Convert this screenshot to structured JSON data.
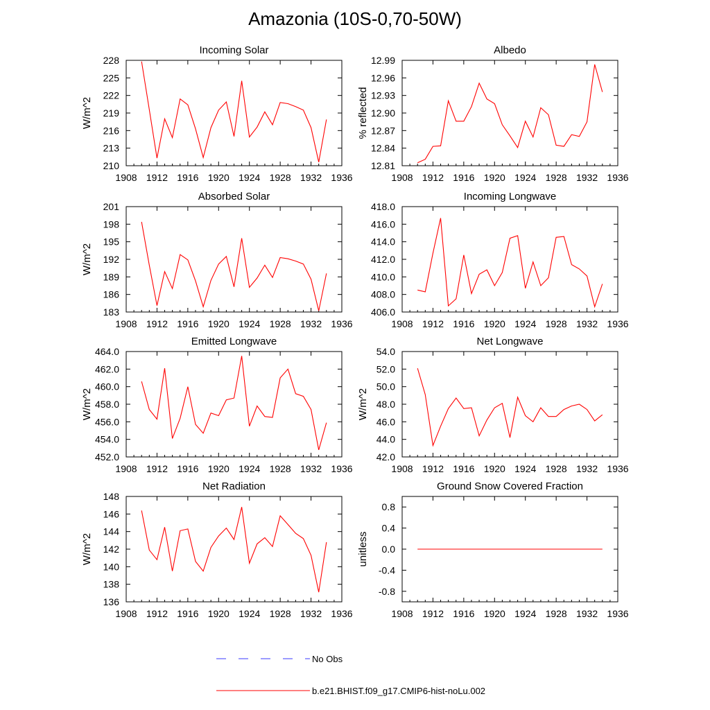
{
  "page_title": "Amazonia (10S-0,70-50W)",
  "colors": {
    "model": "#ff0000",
    "obs": "#3a3aff",
    "axis": "#000000"
  },
  "legend": [
    {
      "label": "No Obs",
      "style": "dashed",
      "color": "#3a3aff"
    },
    {
      "label": "b.e21.BHIST.f09_g17.CMIP6-hist-noLu.002",
      "style": "solid",
      "color": "#ff0000"
    }
  ],
  "chart_data": [
    {
      "type": "line",
      "title": "Incoming Solar",
      "ylabel": "W/m^2",
      "xlim": [
        1908,
        1936
      ],
      "x_ticks": [
        "1908",
        "1912",
        "1916",
        "1920",
        "1924",
        "1928",
        "1932",
        "1936"
      ],
      "ylim": [
        210,
        228
      ],
      "y_ticks": [
        "210",
        "213",
        "216",
        "219",
        "222",
        "225",
        "228"
      ],
      "series": [
        {
          "x": [
            1910,
            1911,
            1912,
            1913,
            1914,
            1915,
            1916,
            1917,
            1918,
            1919,
            1920,
            1921,
            1922,
            1923,
            1924,
            1925,
            1926,
            1927,
            1928,
            1929,
            1930,
            1931,
            1932,
            1933,
            1934
          ],
          "values": [
            227.8,
            219.6,
            211.3,
            218.0,
            214.8,
            221.4,
            220.4,
            216.3,
            211.4,
            216.5,
            219.5,
            220.9,
            215.0,
            224.5,
            214.9,
            216.6,
            219.2,
            217.0,
            220.8,
            220.6,
            220.1,
            219.5,
            216.5,
            210.6,
            217.9
          ]
        }
      ]
    },
    {
      "type": "line",
      "title": "Albedo",
      "ylabel": "% reflected",
      "xlim": [
        1908,
        1936
      ],
      "x_ticks": [
        "1908",
        "1912",
        "1916",
        "1920",
        "1924",
        "1928",
        "1932",
        "1936"
      ],
      "ylim": [
        12.81,
        12.99
      ],
      "y_ticks": [
        "12.81",
        "12.84",
        "12.87",
        "12.90",
        "12.93",
        "12.96",
        "12.99"
      ],
      "series": [
        {
          "x": [
            1910,
            1911,
            1912,
            1913,
            1914,
            1915,
            1916,
            1917,
            1918,
            1919,
            1920,
            1921,
            1922,
            1923,
            1924,
            1925,
            1926,
            1927,
            1928,
            1929,
            1930,
            1931,
            1932,
            1933,
            1934
          ],
          "values": [
            12.815,
            12.821,
            12.843,
            12.844,
            12.921,
            12.886,
            12.886,
            12.911,
            12.951,
            12.924,
            12.916,
            12.88,
            12.861,
            12.841,
            12.886,
            12.859,
            12.909,
            12.897,
            12.845,
            12.843,
            12.863,
            12.86,
            12.885,
            12.983,
            12.936
          ]
        }
      ]
    },
    {
      "type": "line",
      "title": "Absorbed Solar",
      "ylabel": "W/m^2",
      "xlim": [
        1908,
        1936
      ],
      "x_ticks": [
        "1908",
        "1912",
        "1916",
        "1920",
        "1924",
        "1928",
        "1932",
        "1936"
      ],
      "ylim": [
        183,
        201
      ],
      "y_ticks": [
        "183",
        "186",
        "189",
        "192",
        "195",
        "198",
        "201"
      ],
      "series": [
        {
          "x": [
            1910,
            1911,
            1912,
            1913,
            1914,
            1915,
            1916,
            1917,
            1918,
            1919,
            1920,
            1921,
            1922,
            1923,
            1924,
            1925,
            1926,
            1927,
            1928,
            1929,
            1930,
            1931,
            1932,
            1933,
            1934
          ],
          "values": [
            198.4,
            191.0,
            184.1,
            189.9,
            187.0,
            192.8,
            191.9,
            188.3,
            183.9,
            188.4,
            191.2,
            192.5,
            187.3,
            195.6,
            187.2,
            188.8,
            191.0,
            188.9,
            192.3,
            192.1,
            191.7,
            191.2,
            188.6,
            183.2,
            189.6
          ]
        }
      ]
    },
    {
      "type": "line",
      "title": "Incoming Longwave",
      "ylabel": "",
      "xlim": [
        1908,
        1936
      ],
      "x_ticks": [
        "1908",
        "1912",
        "1916",
        "1920",
        "1924",
        "1928",
        "1932",
        "1936"
      ],
      "ylim": [
        406,
        418
      ],
      "y_ticks": [
        "406.0",
        "408.0",
        "410.0",
        "412.0",
        "414.0",
        "416.0",
        "418.0"
      ],
      "series": [
        {
          "x": [
            1910,
            1911,
            1912,
            1913,
            1914,
            1915,
            1916,
            1917,
            1918,
            1919,
            1920,
            1921,
            1922,
            1923,
            1924,
            1925,
            1926,
            1927,
            1928,
            1929,
            1930,
            1931,
            1932,
            1933,
            1934
          ],
          "values": [
            408.5,
            408.3,
            412.7,
            416.7,
            406.7,
            407.5,
            412.5,
            408.1,
            410.3,
            410.8,
            409.0,
            410.5,
            414.4,
            414.7,
            408.7,
            411.7,
            409.0,
            409.9,
            414.5,
            414.6,
            411.4,
            410.9,
            410.1,
            406.6,
            409.2
          ]
        }
      ]
    },
    {
      "type": "line",
      "title": "Emitted Longwave",
      "ylabel": "W/m^2",
      "xlim": [
        1908,
        1936
      ],
      "x_ticks": [
        "1908",
        "1912",
        "1916",
        "1920",
        "1924",
        "1928",
        "1932",
        "1936"
      ],
      "ylim": [
        452,
        464
      ],
      "y_ticks": [
        "452.0",
        "454.0",
        "456.0",
        "458.0",
        "460.0",
        "462.0",
        "464.0"
      ],
      "series": [
        {
          "x": [
            1910,
            1911,
            1912,
            1913,
            1914,
            1915,
            1916,
            1917,
            1918,
            1919,
            1920,
            1921,
            1922,
            1923,
            1924,
            1925,
            1926,
            1927,
            1928,
            1929,
            1930,
            1931,
            1932,
            1933,
            1934
          ],
          "values": [
            460.6,
            457.4,
            456.3,
            462.1,
            454.1,
            456.4,
            460.0,
            455.7,
            454.7,
            457.0,
            456.7,
            458.5,
            458.7,
            463.5,
            455.5,
            457.8,
            456.6,
            456.5,
            461.0,
            462.0,
            459.2,
            458.9,
            457.4,
            452.8,
            455.9
          ]
        }
      ]
    },
    {
      "type": "line",
      "title": "Net Longwave",
      "ylabel": "W/m^2",
      "xlim": [
        1908,
        1936
      ],
      "x_ticks": [
        "1908",
        "1912",
        "1916",
        "1920",
        "1924",
        "1928",
        "1932",
        "1936"
      ],
      "ylim": [
        42,
        54
      ],
      "y_ticks": [
        "42.0",
        "44.0",
        "46.0",
        "48.0",
        "50.0",
        "52.0",
        "54.0"
      ],
      "series": [
        {
          "x": [
            1910,
            1911,
            1912,
            1913,
            1914,
            1915,
            1916,
            1917,
            1918,
            1919,
            1920,
            1921,
            1922,
            1923,
            1924,
            1925,
            1926,
            1927,
            1928,
            1929,
            1930,
            1931,
            1932,
            1933,
            1934
          ],
          "values": [
            52.1,
            49.1,
            43.3,
            45.5,
            47.5,
            48.7,
            47.5,
            47.6,
            44.4,
            46.2,
            47.6,
            48.1,
            44.2,
            48.8,
            46.7,
            46.0,
            47.6,
            46.6,
            46.6,
            47.4,
            47.8,
            48.0,
            47.4,
            46.1,
            46.8
          ]
        }
      ]
    },
    {
      "type": "line",
      "title": "Net Radiation",
      "ylabel": "W/m^2",
      "xlim": [
        1908,
        1936
      ],
      "x_ticks": [
        "1908",
        "1912",
        "1916",
        "1920",
        "1924",
        "1928",
        "1932",
        "1936"
      ],
      "ylim": [
        136,
        148
      ],
      "y_ticks": [
        "136",
        "138",
        "140",
        "142",
        "144",
        "146",
        "148"
      ],
      "series": [
        {
          "x": [
            1910,
            1911,
            1912,
            1913,
            1914,
            1915,
            1916,
            1917,
            1918,
            1919,
            1920,
            1921,
            1922,
            1923,
            1924,
            1925,
            1926,
            1927,
            1928,
            1929,
            1930,
            1931,
            1932,
            1933,
            1934
          ],
          "values": [
            146.4,
            141.9,
            140.8,
            144.5,
            139.5,
            144.1,
            144.3,
            140.6,
            139.5,
            142.2,
            143.5,
            144.4,
            143.1,
            146.8,
            140.4,
            142.6,
            143.3,
            142.3,
            145.8,
            144.8,
            143.8,
            143.2,
            141.3,
            137.1,
            142.8
          ]
        }
      ]
    },
    {
      "type": "line",
      "title": "Ground Snow Covered Fraction",
      "ylabel": "unitless",
      "xlim": [
        1908,
        1936
      ],
      "x_ticks": [
        "1908",
        "1912",
        "1916",
        "1920",
        "1924",
        "1928",
        "1932",
        "1936"
      ],
      "ylim": [
        -1.0,
        1.0
      ],
      "y_ticks": [
        "-0.8",
        "-0.4",
        "0.0",
        "0.4",
        "0.8"
      ],
      "series": [
        {
          "x": [
            1910,
            1911,
            1912,
            1913,
            1914,
            1915,
            1916,
            1917,
            1918,
            1919,
            1920,
            1921,
            1922,
            1923,
            1924,
            1925,
            1926,
            1927,
            1928,
            1929,
            1930,
            1931,
            1932,
            1933,
            1934
          ],
          "values": [
            0,
            0,
            0,
            0,
            0,
            0,
            0,
            0,
            0,
            0,
            0,
            0,
            0,
            0,
            0,
            0,
            0,
            0,
            0,
            0,
            0,
            0,
            0,
            0,
            0
          ]
        }
      ]
    }
  ]
}
